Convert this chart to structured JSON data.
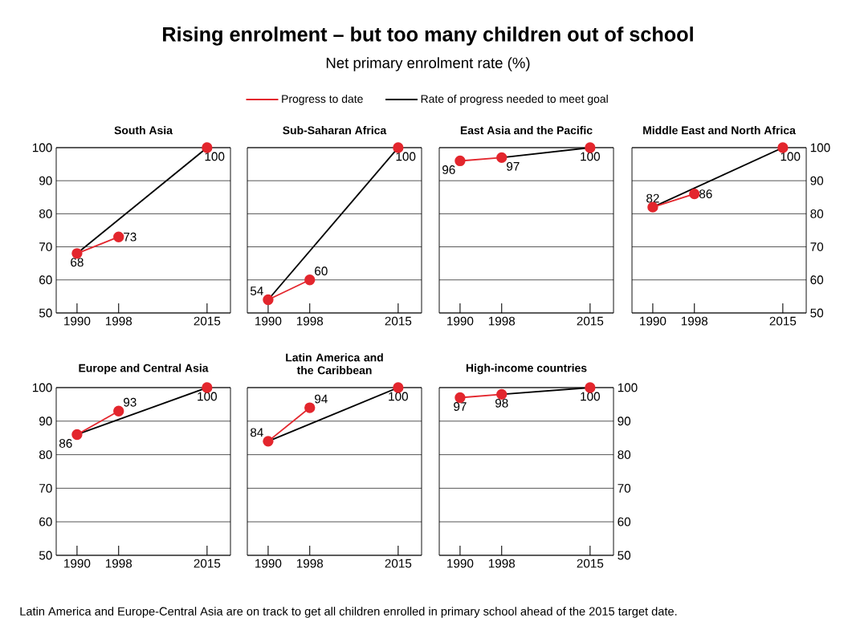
{
  "chart_data": [
    {
      "type": "line",
      "title": "South Asia",
      "annotations": [
        "Rising enrolment – but too many children out of school",
        "Net primary enrolment rate (%)",
        "Latin America and Europe-Central Asia are on track to get all children enrolled in primary school ahead of the 2015 target date."
      ],
      "legend": "top",
      "xlim": [
        1986,
        2019.5
      ],
      "xticks": [
        1990,
        1998,
        2015
      ],
      "ylim": [
        50,
        100
      ],
      "yticks": [
        50,
        60,
        70,
        80,
        90,
        100
      ],
      "grid": "y",
      "series": [
        {
          "name": "Progress to date",
          "color": "#e3262d",
          "marker": "circle",
          "x": [
            1990,
            1998
          ],
          "values": [
            68,
            73
          ],
          "value_labels": [
            "68",
            "73"
          ]
        },
        {
          "name": "Rate of progress needed to meet goal",
          "color": "#000000",
          "marker": "none",
          "x": [
            1990,
            2015
          ],
          "values": [
            68,
            100
          ]
        },
        {
          "type": "scatter",
          "color": "#e3262d",
          "marker": "circle",
          "x": [
            2015
          ],
          "values": [
            100
          ],
          "value_labels": [
            "100"
          ]
        }
      ]
    },
    {
      "type": "line",
      "title": "Sub-Saharan Africa",
      "xlim": [
        1986,
        2019.5
      ],
      "xticks": [
        1990,
        1998,
        2015
      ],
      "ylim": [
        50,
        100
      ],
      "yticks": [
        50,
        60,
        70,
        80,
        90,
        100
      ],
      "grid": "y",
      "tick_labels": "x",
      "series": [
        {
          "color": "#e3262d",
          "marker": "circle",
          "x": [
            1990,
            1998
          ],
          "values": [
            54,
            60
          ],
          "value_labels": [
            "54",
            "60"
          ]
        },
        {
          "color": "#000000",
          "marker": "none",
          "x": [
            1990,
            2015
          ],
          "values": [
            54,
            100
          ]
        },
        {
          "type": "scatter",
          "color": "#e3262d",
          "marker": "circle",
          "x": [
            2015
          ],
          "values": [
            100
          ],
          "value_labels": [
            "100"
          ]
        }
      ]
    },
    {
      "type": "line",
      "title": "East Asia and the Pacific",
      "xlim": [
        1986,
        2019.5
      ],
      "xticks": [
        1990,
        1998,
        2015
      ],
      "ylim": [
        50,
        100
      ],
      "yticks": [
        50,
        60,
        70,
        80,
        90,
        100
      ],
      "grid": "y",
      "tick_labels": "x",
      "series": [
        {
          "color": "#e3262d",
          "marker": "circle",
          "x": [
            1990,
            1998
          ],
          "values": [
            96,
            97
          ],
          "value_labels": [
            "96",
            "97"
          ]
        },
        {
          "color": "#000000",
          "marker": "none",
          "x": [
            1998,
            2015
          ],
          "values": [
            97,
            100
          ]
        },
        {
          "type": "scatter",
          "color": "#e3262d",
          "marker": "circle",
          "x": [
            2015
          ],
          "values": [
            100
          ],
          "value_labels": [
            "100"
          ]
        }
      ]
    },
    {
      "type": "line",
      "title": "Middle East and North Africa",
      "xlim": [
        1986,
        2019.5
      ],
      "xticks": [
        1990,
        1998,
        2015
      ],
      "ylim": [
        50,
        100
      ],
      "yticks": [
        50,
        60,
        70,
        80,
        90,
        100
      ],
      "grid": "y",
      "series": [
        {
          "color": "#e3262d",
          "marker": "circle",
          "x": [
            1990,
            1998
          ],
          "values": [
            82,
            86
          ],
          "value_labels": [
            "82",
            "86"
          ]
        },
        {
          "color": "#000000",
          "marker": "none",
          "x": [
            1990,
            2015
          ],
          "values": [
            82,
            100
          ]
        },
        {
          "type": "scatter",
          "color": "#e3262d",
          "marker": "circle",
          "x": [
            2015
          ],
          "values": [
            100
          ],
          "value_labels": [
            "100"
          ]
        }
      ]
    },
    {
      "type": "line",
      "title": "Europe and Central Asia",
      "xlim": [
        1986,
        2019.5
      ],
      "xticks": [
        1990,
        1998,
        2015
      ],
      "ylim": [
        50,
        100
      ],
      "yticks": [
        50,
        60,
        70,
        80,
        90,
        100
      ],
      "grid": "y",
      "series": [
        {
          "color": "#e3262d",
          "marker": "circle",
          "x": [
            1990,
            1998
          ],
          "values": [
            86,
            93
          ],
          "value_labels": [
            "86",
            "93"
          ]
        },
        {
          "color": "#000000",
          "marker": "none",
          "x": [
            1990,
            2015
          ],
          "values": [
            86,
            100
          ]
        },
        {
          "type": "scatter",
          "color": "#e3262d",
          "marker": "circle",
          "x": [
            2015
          ],
          "values": [
            100
          ],
          "value_labels": [
            "100"
          ]
        }
      ]
    },
    {
      "type": "line",
      "title": "Latin America and the Caribbean",
      "xlim": [
        1986,
        2019.5
      ],
      "xticks": [
        1990,
        1998,
        2015
      ],
      "ylim": [
        50,
        100
      ],
      "yticks": [
        50,
        60,
        70,
        80,
        90,
        100
      ],
      "grid": "y",
      "tick_labels": "x",
      "series": [
        {
          "color": "#e3262d",
          "marker": "circle",
          "x": [
            1990,
            1998
          ],
          "values": [
            84,
            94
          ],
          "value_labels": [
            "84",
            "94"
          ]
        },
        {
          "color": "#000000",
          "marker": "none",
          "x": [
            1990,
            2015
          ],
          "values": [
            84,
            100
          ]
        },
        {
          "type": "scatter",
          "color": "#e3262d",
          "marker": "circle",
          "x": [
            2015
          ],
          "values": [
            100
          ],
          "value_labels": [
            "100"
          ]
        }
      ]
    },
    {
      "type": "line",
      "title": "High-income countries",
      "xlim": [
        1986,
        2019.5
      ],
      "xticks": [
        1990,
        1998,
        2015
      ],
      "ylim": [
        50,
        100
      ],
      "yticks": [
        50,
        60,
        70,
        80,
        90,
        100
      ],
      "grid": "y",
      "series": [
        {
          "color": "#e3262d",
          "marker": "circle",
          "x": [
            1990,
            1998
          ],
          "values": [
            97,
            98
          ],
          "value_labels": [
            "97",
            "98"
          ]
        },
        {
          "color": "#000000",
          "marker": "none",
          "x": [
            1998,
            2015
          ],
          "values": [
            98,
            100
          ]
        },
        {
          "type": "scatter",
          "color": "#e3262d",
          "marker": "circle",
          "x": [
            2015
          ],
          "values": [
            100
          ],
          "value_labels": [
            "100"
          ]
        }
      ]
    }
  ]
}
